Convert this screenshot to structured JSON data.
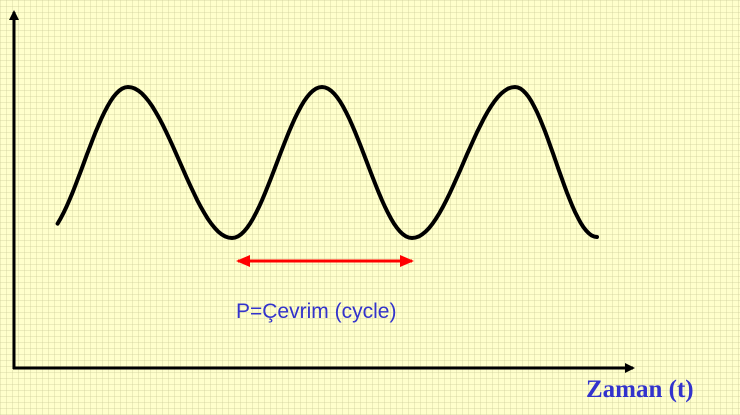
{
  "labels": {
    "period": "P=Çevrim (cycle)",
    "x_axis": "Zaman (t)"
  }
}
